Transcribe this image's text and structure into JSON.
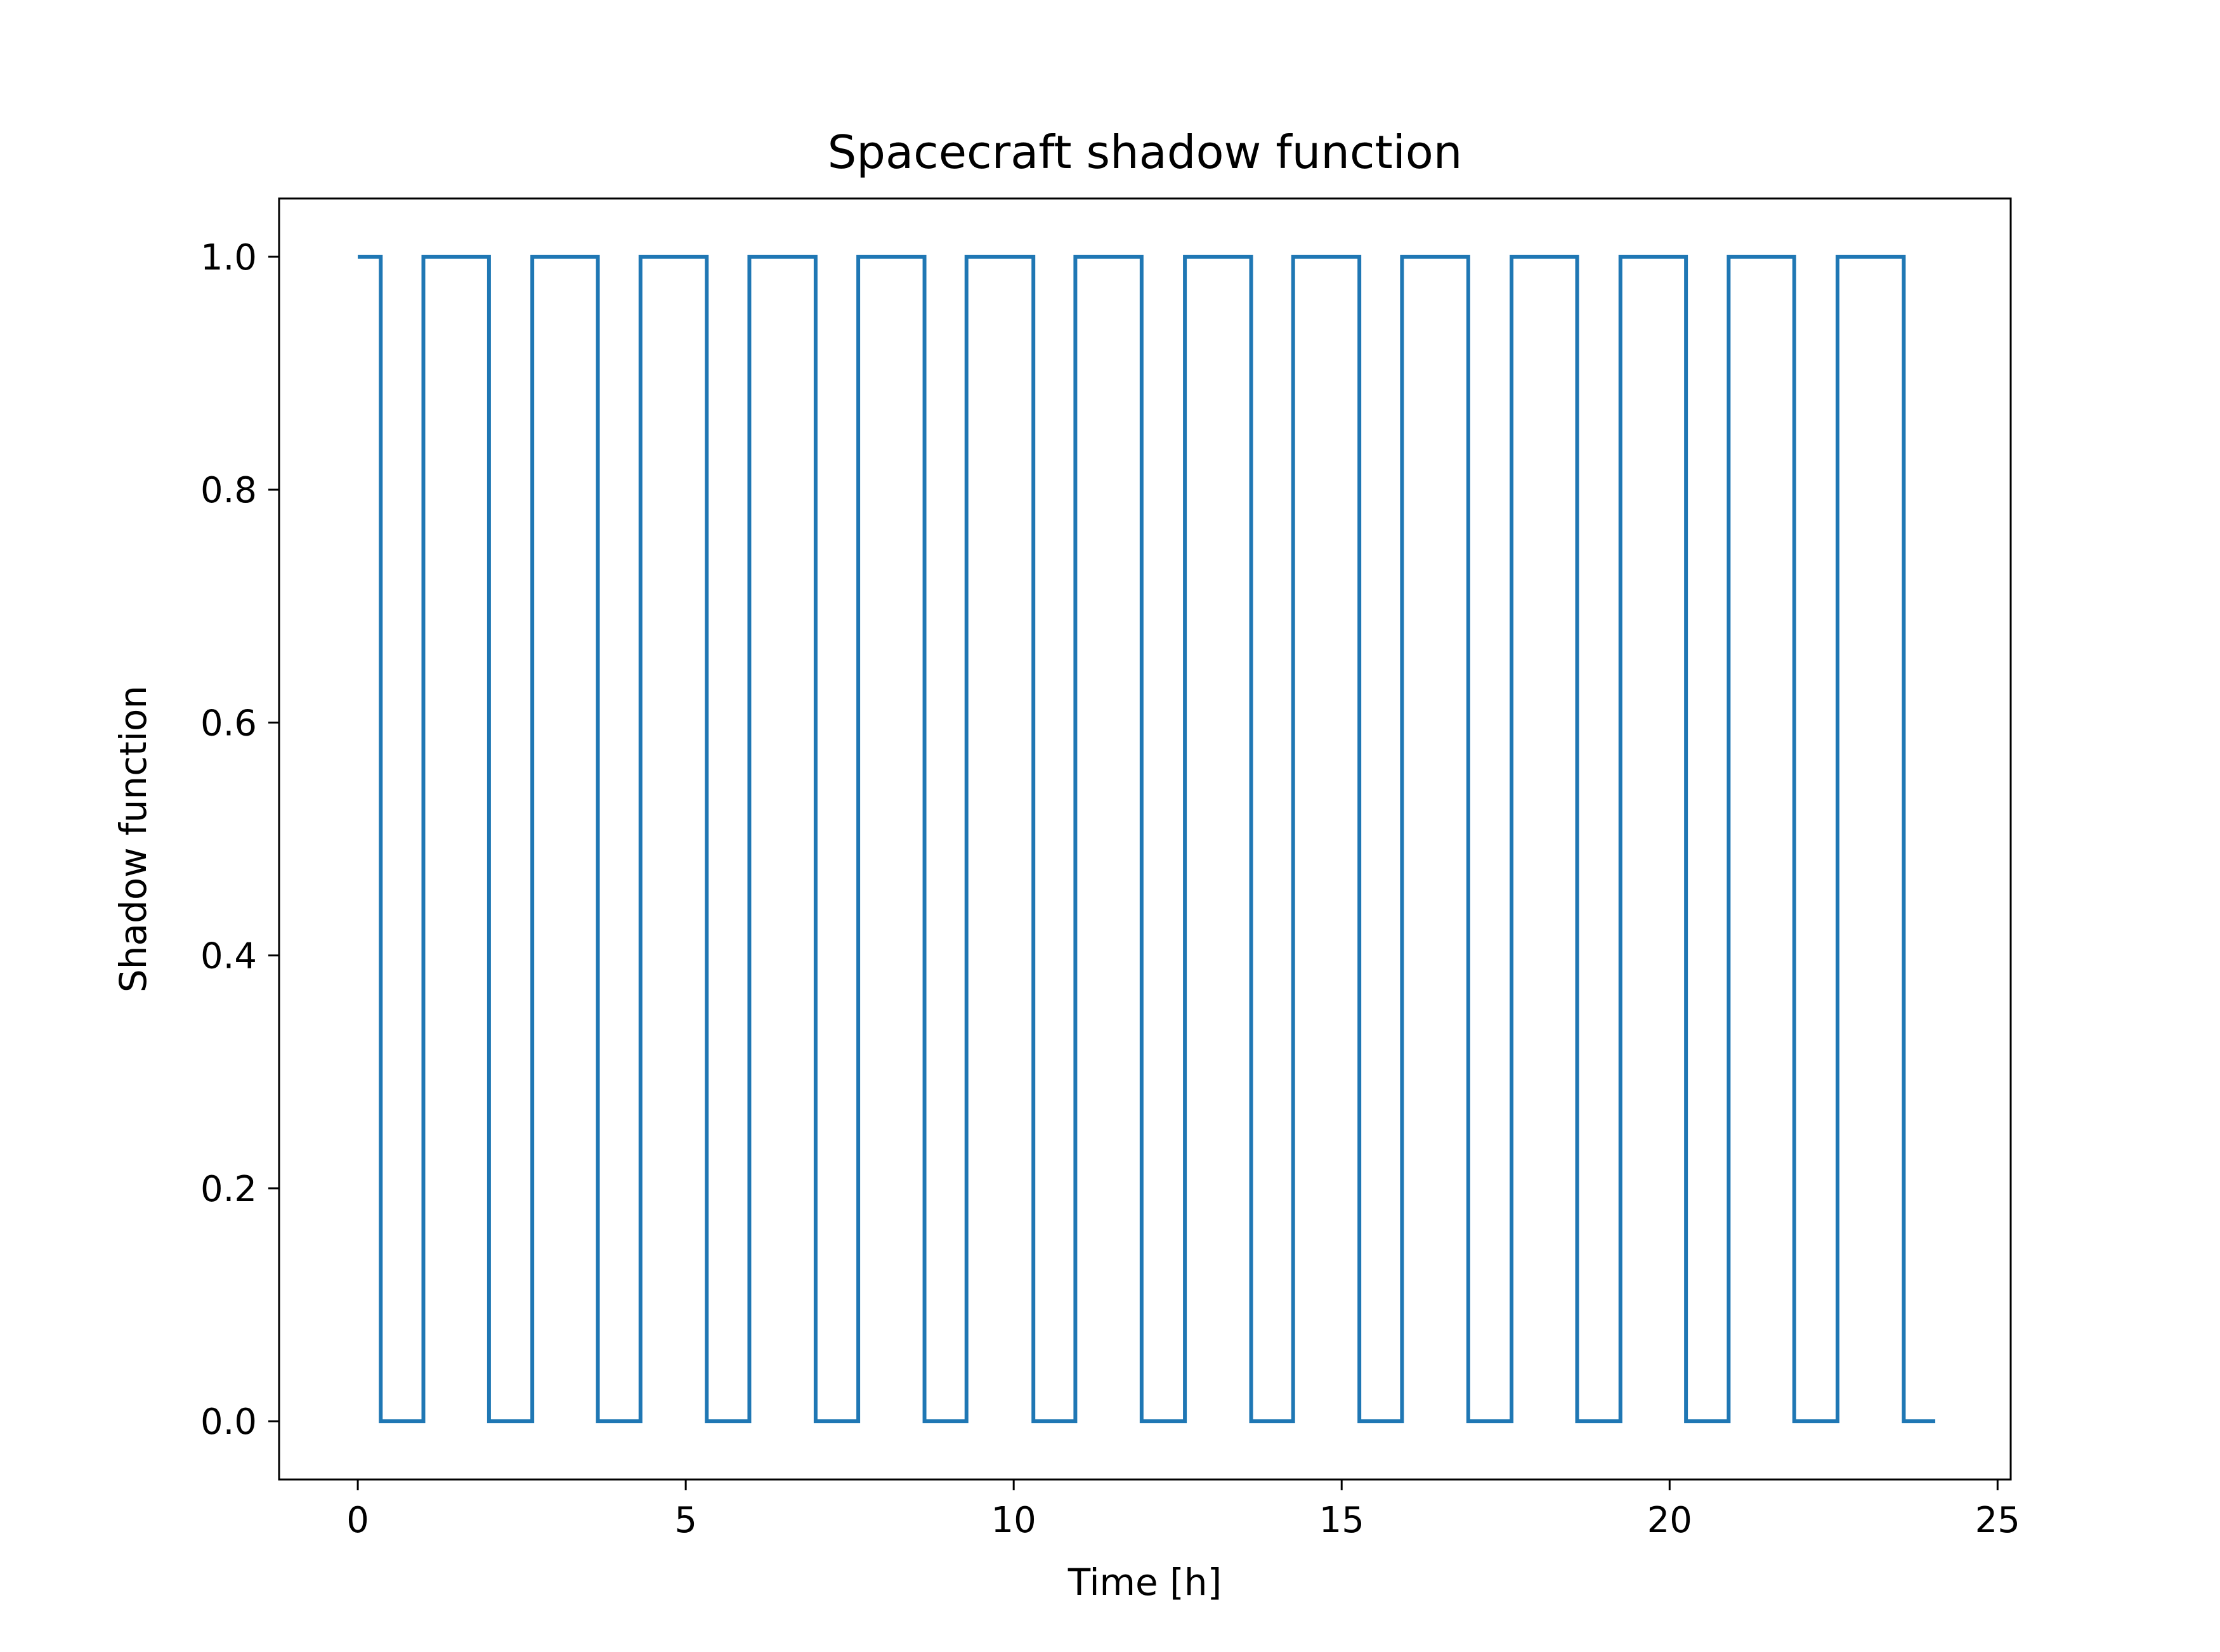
{
  "chart_data": {
    "type": "line",
    "title": "Spacecraft shadow function",
    "xlabel": "Time [h]",
    "ylabel": "Shadow function",
    "xlim": [
      -1.2,
      25.2
    ],
    "ylim": [
      -0.05,
      1.05
    ],
    "xticks": [
      0,
      5,
      10,
      15,
      20,
      25
    ],
    "yticks": [
      0.0,
      0.2,
      0.4,
      0.6,
      0.8,
      1.0
    ],
    "xtick_labels": [
      "0",
      "5",
      "10",
      "15",
      "20",
      "25"
    ],
    "ytick_labels": [
      "0.0",
      "0.2",
      "0.4",
      "0.6",
      "0.8",
      "1.0"
    ],
    "grid": false,
    "legend": "none",
    "series": [
      {
        "color": "#1f77b4",
        "step": true,
        "x": [
          0,
          0.35,
          0.35,
          1.0,
          1.0,
          2.0,
          2.0,
          2.66,
          2.66,
          3.66,
          3.66,
          4.31,
          4.31,
          5.32,
          5.32,
          5.97,
          5.97,
          6.98,
          6.98,
          7.63,
          7.63,
          8.64,
          8.64,
          9.28,
          9.28,
          10.3,
          10.3,
          10.94,
          10.94,
          11.95,
          11.95,
          12.61,
          12.61,
          13.62,
          13.62,
          14.26,
          14.26,
          15.27,
          15.27,
          15.92,
          15.92,
          16.93,
          16.93,
          17.59,
          17.59,
          18.59,
          18.59,
          19.25,
          19.25,
          20.25,
          20.25,
          20.9,
          20.9,
          21.9,
          21.9,
          22.56,
          22.56,
          23.57,
          23.57,
          24.05
        ],
        "y": [
          1,
          1,
          0,
          0,
          1,
          1,
          0,
          0,
          1,
          1,
          0,
          0,
          1,
          1,
          0,
          0,
          1,
          1,
          0,
          0,
          1,
          1,
          0,
          0,
          1,
          1,
          0,
          0,
          1,
          1,
          0,
          0,
          1,
          1,
          0,
          0,
          1,
          1,
          0,
          0,
          1,
          1,
          0,
          0,
          1,
          1,
          0,
          0,
          1,
          1,
          0,
          0,
          1,
          1,
          0,
          0,
          1,
          1,
          0,
          0
        ]
      }
    ]
  }
}
